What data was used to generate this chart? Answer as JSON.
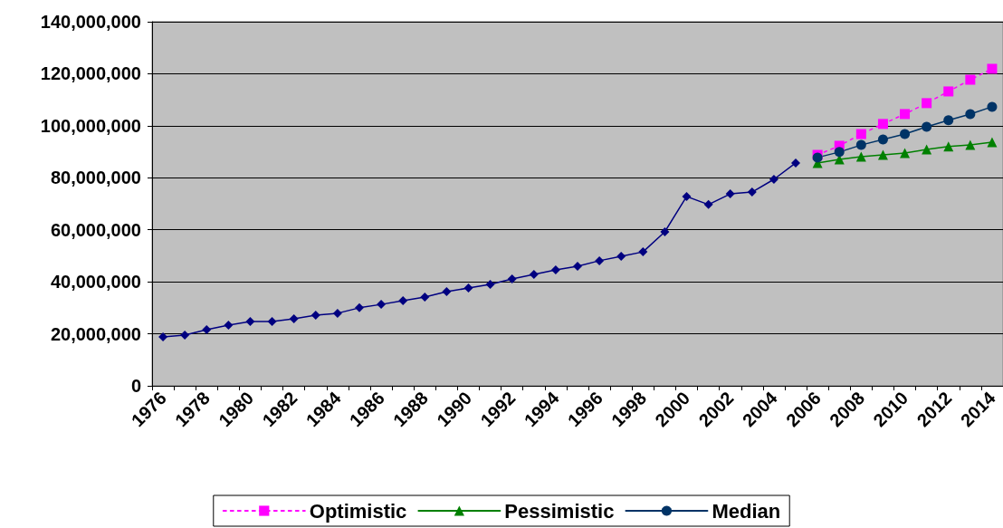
{
  "chart_data": {
    "type": "line",
    "categories": [
      "1976",
      null,
      "1978",
      null,
      "1980",
      null,
      "1982",
      null,
      "1984",
      null,
      "1986",
      null,
      "1988",
      null,
      "1990",
      null,
      "1992",
      null,
      "1994",
      null,
      "1996",
      null,
      "1998",
      null,
      "2000",
      null,
      "2002",
      null,
      "2004",
      null,
      "2006",
      null,
      "2008",
      null,
      "2010",
      null,
      "2012",
      null,
      "2014"
    ],
    "series": [
      {
        "color": "#000080",
        "marker": "diamond",
        "line_style": "solid",
        "values": [
          18800000,
          19500000,
          21600000,
          23300000,
          24700000,
          24700000,
          25800000,
          27200000,
          27900000,
          30000000,
          31300000,
          32700000,
          34100000,
          36200000,
          37600000,
          39000000,
          41100000,
          42800000,
          44600000,
          46000000,
          48100000,
          49800000,
          51500000,
          59200000,
          72800000,
          69700000,
          73800000,
          74500000,
          79400000,
          85700000,
          null,
          null,
          null,
          null,
          null,
          null,
          null,
          null,
          null
        ]
      },
      {
        "name": "Optimistic",
        "color": "#ff00ff",
        "marker": "square",
        "line_style": "dotted",
        "values": [
          null,
          null,
          null,
          null,
          null,
          null,
          null,
          null,
          null,
          null,
          null,
          null,
          null,
          null,
          null,
          null,
          null,
          null,
          null,
          null,
          null,
          null,
          null,
          null,
          null,
          null,
          null,
          null,
          null,
          null,
          88800000,
          92300000,
          96800000,
          100700000,
          104500000,
          108700000,
          113200000,
          117700000,
          121900000
        ]
      },
      {
        "name": "Pessimistic",
        "color": "#008000",
        "marker": "triangle",
        "line_style": "solid",
        "values": [
          null,
          null,
          null,
          null,
          null,
          null,
          null,
          null,
          null,
          null,
          null,
          null,
          null,
          null,
          null,
          null,
          null,
          null,
          null,
          null,
          null,
          null,
          null,
          null,
          null,
          null,
          null,
          null,
          null,
          null,
          85700000,
          87100000,
          88100000,
          88800000,
          89500000,
          90900000,
          92000000,
          92600000,
          93700000
        ]
      },
      {
        "name": "Median",
        "color": "#003366",
        "marker": "circle",
        "line_style": "solid",
        "values": [
          null,
          null,
          null,
          null,
          null,
          null,
          null,
          null,
          null,
          null,
          null,
          null,
          null,
          null,
          null,
          null,
          null,
          null,
          null,
          null,
          null,
          null,
          null,
          null,
          null,
          null,
          null,
          null,
          null,
          null,
          87800000,
          89900000,
          92600000,
          94700000,
          96800000,
          99600000,
          102100000,
          104500000,
          107300000
        ]
      }
    ],
    "ylim": [
      0,
      140000000
    ],
    "yticks": [
      0,
      {
        "value": 20000000,
        "label": "20,000,000"
      },
      {
        "value": 40000000,
        "label": "40,000,000"
      },
      {
        "value": 60000000,
        "label": "60,000,000"
      },
      {
        "value": 80000000,
        "label": "80,000,000"
      },
      {
        "value": 100000000,
        "label": "100,000,000"
      },
      {
        "value": 120000000,
        "label": "120,000,000"
      },
      {
        "value": 140000000,
        "label": "140,000,000"
      }
    ],
    "grid": "y",
    "legend": "bottom"
  }
}
